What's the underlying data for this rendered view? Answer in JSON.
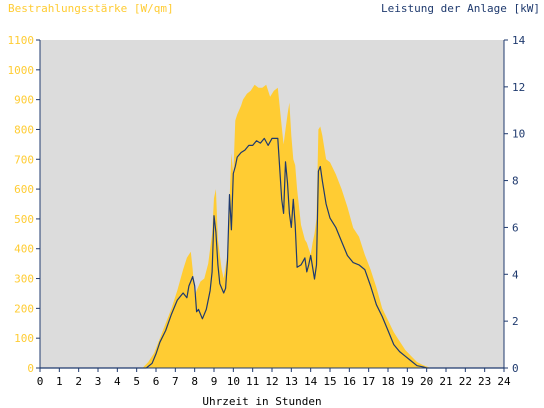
{
  "chart_data": {
    "type": "area",
    "title_left": "Bestrahlungsstärke [W/qm]",
    "title_right": "Leistung der Anlage [kW]",
    "xlabel": "Uhrzeit in Stunden",
    "xlim": [
      0,
      24
    ],
    "x_ticks": [
      "0",
      "1",
      "2",
      "3",
      "4",
      "5",
      "6",
      "7",
      "8",
      "9",
      "10",
      "11",
      "12",
      "13",
      "14",
      "15",
      "16",
      "17",
      "18",
      "19",
      "20",
      "21",
      "22",
      "23",
      "24"
    ],
    "y_left": {
      "lim": [
        0,
        1100
      ],
      "ticks": [
        "0",
        "100",
        "200",
        "300",
        "400",
        "500",
        "600",
        "700",
        "800",
        "900",
        "1000",
        "1100"
      ],
      "color": "#ffcc33"
    },
    "y_right": {
      "lim": [
        0,
        14
      ],
      "ticks": [
        "0",
        "2",
        "4",
        "6",
        "8",
        "10",
        "12",
        "14"
      ],
      "color": "#1f3a6e"
    },
    "plot_background": "#dcdcdc",
    "series": [
      {
        "axis": "left",
        "style": "area",
        "color": "#ffcc33",
        "x": [
          0,
          5.3,
          5.6,
          5.9,
          6.2,
          6.5,
          6.8,
          7.1,
          7.4,
          7.6,
          7.8,
          7.9,
          8.0,
          8.1,
          8.3,
          8.5,
          8.7,
          8.9,
          9.0,
          9.1,
          9.2,
          9.4,
          9.5,
          9.6,
          9.7,
          9.8,
          9.9,
          10.0,
          10.1,
          10.2,
          10.4,
          10.5,
          10.7,
          10.9,
          11.1,
          11.3,
          11.5,
          11.7,
          11.9,
          12.1,
          12.3,
          12.5,
          12.6,
          12.7,
          12.8,
          12.9,
          13.0,
          13.1,
          13.2,
          13.3,
          13.5,
          13.7,
          13.8,
          13.9,
          14.0,
          14.1,
          14.2,
          14.3,
          14.4,
          14.5,
          14.6,
          14.8,
          15.0,
          15.3,
          15.6,
          15.9,
          16.2,
          16.5,
          16.8,
          17.1,
          17.4,
          17.7,
          18.0,
          18.3,
          18.6,
          18.9,
          19.2,
          19.5,
          19.8,
          20.0,
          20.2,
          24
        ],
        "values": [
          0,
          0,
          20,
          50,
          100,
          150,
          200,
          260,
          330,
          370,
          390,
          330,
          240,
          260,
          290,
          300,
          350,
          450,
          570,
          600,
          430,
          330,
          300,
          340,
          380,
          560,
          720,
          650,
          830,
          850,
          880,
          900,
          920,
          930,
          950,
          940,
          940,
          950,
          910,
          930,
          940,
          810,
          750,
          800,
          850,
          890,
          780,
          700,
          680,
          600,
          480,
          430,
          420,
          400,
          380,
          420,
          450,
          500,
          800,
          810,
          780,
          700,
          690,
          650,
          600,
          540,
          470,
          440,
          380,
          330,
          270,
          200,
          160,
          120,
          90,
          60,
          40,
          20,
          10,
          5,
          0,
          0
        ]
      },
      {
        "axis": "right",
        "style": "line",
        "color": "#1f3a6e",
        "x": [
          0,
          5.5,
          5.8,
          6.0,
          6.2,
          6.5,
          6.8,
          7.1,
          7.4,
          7.6,
          7.7,
          7.9,
          8.0,
          8.1,
          8.2,
          8.4,
          8.6,
          8.8,
          8.9,
          9.0,
          9.1,
          9.2,
          9.3,
          9.5,
          9.6,
          9.7,
          9.8,
          9.9,
          10.0,
          10.1,
          10.2,
          10.4,
          10.6,
          10.8,
          11.0,
          11.2,
          11.4,
          11.6,
          11.8,
          12.0,
          12.2,
          12.3,
          12.5,
          12.6,
          12.7,
          12.8,
          12.9,
          13.0,
          13.1,
          13.2,
          13.3,
          13.5,
          13.7,
          13.8,
          13.9,
          14.0,
          14.2,
          14.3,
          14.4,
          14.5,
          14.6,
          14.8,
          15.0,
          15.3,
          15.6,
          15.9,
          16.2,
          16.5,
          16.8,
          17.1,
          17.4,
          17.7,
          18.0,
          18.3,
          18.6,
          18.9,
          19.2,
          19.5,
          19.8,
          20.0,
          20.2,
          24
        ],
        "values": [
          0,
          0,
          0.2,
          0.6,
          1.1,
          1.6,
          2.3,
          2.9,
          3.2,
          3.0,
          3.5,
          3.9,
          3.5,
          2.4,
          2.5,
          2.1,
          2.5,
          3.3,
          4.1,
          6.5,
          5.8,
          4.4,
          3.6,
          3.2,
          3.4,
          4.6,
          7.4,
          5.9,
          8.3,
          8.6,
          9.0,
          9.2,
          9.3,
          9.5,
          9.5,
          9.7,
          9.6,
          9.8,
          9.5,
          9.8,
          9.8,
          9.8,
          7.2,
          6.6,
          8.8,
          7.9,
          6.6,
          6.0,
          7.2,
          6.1,
          4.3,
          4.4,
          4.7,
          4.1,
          4.4,
          4.8,
          3.8,
          4.4,
          8.4,
          8.6,
          8.0,
          7.0,
          6.4,
          6.0,
          5.4,
          4.8,
          4.5,
          4.4,
          4.2,
          3.5,
          2.7,
          2.2,
          1.6,
          1.0,
          0.7,
          0.5,
          0.3,
          0.1,
          0.05,
          0,
          0,
          0
        ]
      }
    ]
  }
}
